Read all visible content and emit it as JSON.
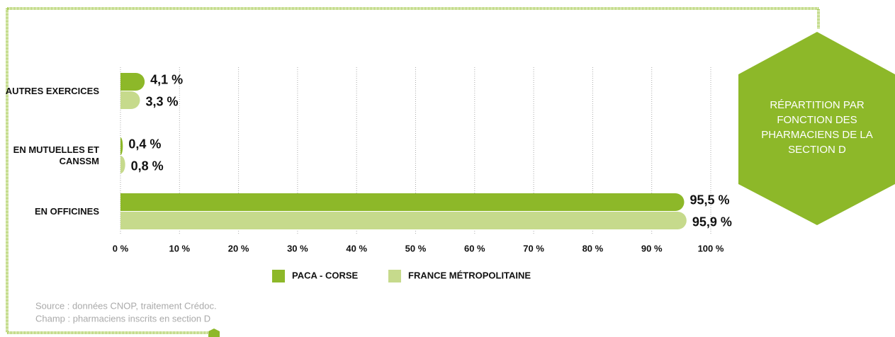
{
  "chart_data": {
    "type": "bar",
    "orientation": "horizontal",
    "title": "RÉPARTITION PAR FONCTION DES PHARMACIENS DE LA SECTION D",
    "categories": [
      "AUTRES EXERCICES",
      "EN MUTUELLES ET CANSSM",
      "EN OFFICINES"
    ],
    "series": [
      {
        "name": "PACA - CORSE",
        "color": "#8db829",
        "values": [
          4.1,
          0.4,
          95.5
        ],
        "value_labels": [
          "4,1 %",
          "0,4 %",
          "95,5 %"
        ]
      },
      {
        "name": "FRANCE MÉTROPOLITAINE",
        "color": "#c6da8c",
        "values": [
          3.3,
          0.8,
          95.9
        ],
        "value_labels": [
          "3,3 %",
          "0,8 %",
          "95,9 %"
        ]
      }
    ],
    "xlim": [
      0,
      100
    ],
    "xticks": [
      {
        "value": 0,
        "label": "0 %"
      },
      {
        "value": 10,
        "label": "10 %"
      },
      {
        "value": 20,
        "label": "20 %"
      },
      {
        "value": 30,
        "label": "30 %"
      },
      {
        "value": 40,
        "label": "40 %"
      },
      {
        "value": 50,
        "label": "50 %"
      },
      {
        "value": 60,
        "label": "60 %"
      },
      {
        "value": 70,
        "label": "70 %"
      },
      {
        "value": 80,
        "label": "80 %"
      },
      {
        "value": 90,
        "label": "90 %"
      },
      {
        "value": 100,
        "label": "100 %"
      }
    ],
    "grid": true,
    "notes": [
      "Source : données CNOP, traitement Crédoc.",
      "Champ : pharmaciens inscrits en section D"
    ]
  }
}
